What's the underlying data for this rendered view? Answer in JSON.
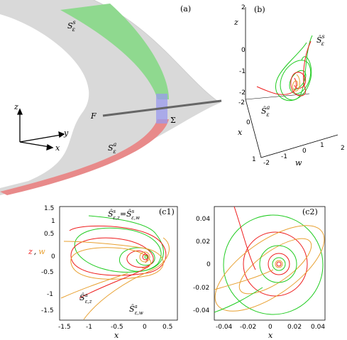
{
  "panels": {
    "a": {
      "tag": "(a)",
      "labels": {
        "stable": "S",
        "stable_sup": "s",
        "stable_sub": "ε",
        "unstable": "S",
        "unstable_sup": "a",
        "unstable_sub": "ε",
        "fold": "F",
        "section": "Σ",
        "axis_z": "z",
        "axis_y": "y",
        "axis_x": "x"
      }
    },
    "b": {
      "tag": "(b)",
      "axis_z": "z",
      "axis_x": "x",
      "axis_w": "w",
      "z_ticks": [
        "2",
        "0",
        "-1",
        "-2"
      ],
      "x_ticks": [
        "-2",
        "0",
        "1"
      ],
      "w_ticks": [
        "-2",
        "-1",
        "0",
        "1",
        "2"
      ],
      "label_s": "Ŝ",
      "label_s_sup": "s",
      "label_s_sub": "ε",
      "label_a": "Ŝ",
      "label_a_sup": "a",
      "label_a_sub": "ε"
    },
    "c1": {
      "tag": "(c1)",
      "ylabel_z": "z",
      "ylabel_sep": ",",
      "ylabel_w": "w",
      "xlabel": "x",
      "x_ticks": [
        "-1.5",
        "-1",
        "-0.5",
        "0",
        "0.5"
      ],
      "y_ticks": [
        "1.5",
        "1",
        "0.5",
        "0",
        "-0.5",
        "-1",
        "-1.5"
      ],
      "label_top": "Ŝ",
      "label_top_sup": "s",
      "label_top_sub": "ε,z",
      "label_top_eq": "=",
      "label_top2": "Ŝ",
      "label_top2_sup": "s",
      "label_top2_sub": "ε,w",
      "label_az": "Ŝ",
      "label_az_sup": "a",
      "label_az_sub": "ε,z",
      "label_aw": "Ŝ",
      "label_aw_sup": "a",
      "label_aw_sub": "ε,w"
    },
    "c2": {
      "tag": "(c2)",
      "xlabel": "x",
      "x_ticks": [
        "-0.04",
        "-0.02",
        "0",
        "0.02",
        "0.04"
      ],
      "y_ticks": [
        "0.04",
        "0.02",
        "0",
        "-0.02",
        "-0.04"
      ]
    }
  },
  "colors": {
    "stable": "#22cc22",
    "unstable": "#ee1c1c",
    "orange": "#e8a030",
    "sheet": "#d9d9d9",
    "green_fill": "#8fd98f",
    "red_fill": "#e88a8a",
    "section": "#9999ee",
    "fold_line": "#666666"
  }
}
